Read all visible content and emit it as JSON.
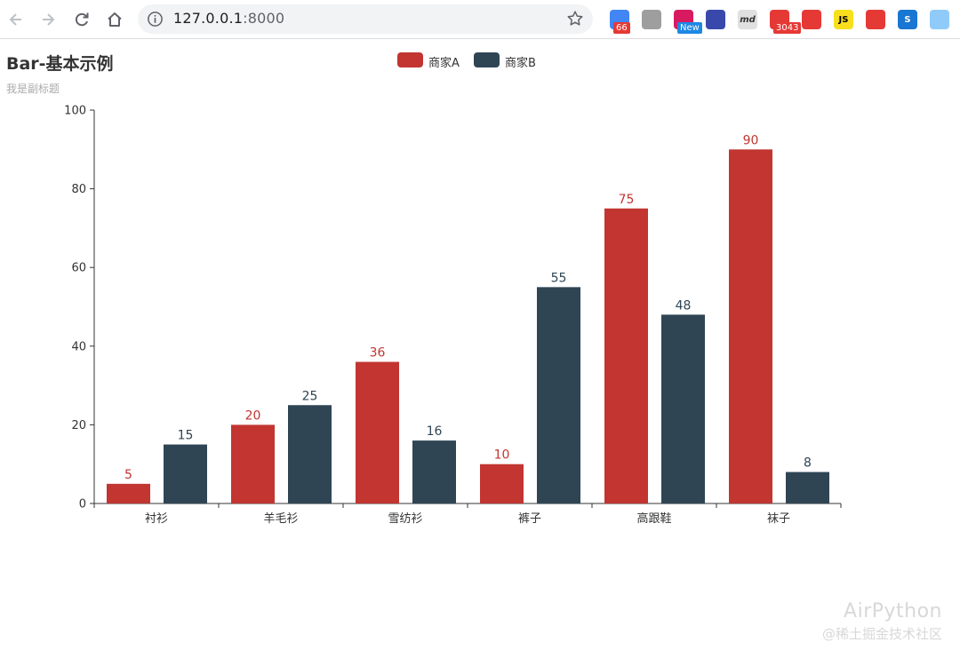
{
  "browser": {
    "url_host": "127.0.0.1",
    "url_port": ":8000",
    "extensions": [
      {
        "icon": "grid-extension-icon",
        "color": "#4285f4",
        "badge": "66",
        "badge_color": "#e53935"
      },
      {
        "icon": "image-extension-icon",
        "color": "#9e9e9e",
        "badge": ""
      },
      {
        "icon": "camera-extension-icon",
        "color": "#d81b60",
        "badge": "New",
        "badge_color": "#1e88e5"
      },
      {
        "icon": "swirl-extension-icon",
        "color": "#3949ab",
        "badge": ""
      },
      {
        "icon": "markdown-extension-icon",
        "label": "md",
        "color": "#e0e0e0",
        "badge": ""
      },
      {
        "icon": "mail-extension-icon",
        "color": "#e53935",
        "badge": "3043",
        "badge_color": "#e53935"
      },
      {
        "icon": "adblock-extension-icon",
        "color": "#e53935",
        "badge": ""
      },
      {
        "icon": "js-extension-icon",
        "label": "JS",
        "color": "#f7df1e",
        "badge": ""
      },
      {
        "icon": "tomato-extension-icon",
        "color": "#e53935",
        "badge": ""
      },
      {
        "icon": "s-extension-icon",
        "label": "S",
        "color": "#1976d2",
        "badge": ""
      },
      {
        "icon": "globe-extension-icon",
        "color": "#90caf9",
        "badge": ""
      }
    ]
  },
  "chart_data": {
    "type": "bar",
    "title": "Bar-基本示例",
    "subtitle": "我是副标题",
    "categories": [
      "衬衫",
      "羊毛衫",
      "雪纺衫",
      "裤子",
      "高跟鞋",
      "袜子"
    ],
    "series": [
      {
        "name": "商家A",
        "color": "#c23531",
        "values": [
          5,
          20,
          36,
          10,
          75,
          90
        ]
      },
      {
        "name": "商家B",
        "color": "#2f4554",
        "values": [
          15,
          25,
          16,
          55,
          48,
          8
        ]
      }
    ],
    "ylim": [
      0,
      100
    ],
    "yticks": [
      0,
      20,
      40,
      60,
      80,
      100
    ],
    "legend_position": "top-center",
    "grid": false
  },
  "watermark": {
    "line1": "AirPython",
    "line2": "@稀土掘金技术社区"
  }
}
